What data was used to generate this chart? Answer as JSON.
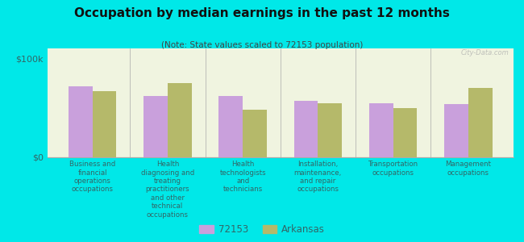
{
  "title": "Occupation by median earnings in the past 12 months",
  "subtitle": "(Note: State values scaled to 72153 population)",
  "background_color": "#00e8e8",
  "plot_bg_color": "#f0f4e0",
  "categories": [
    "Business and\nfinancial\noperations\noccupations",
    "Health\ndiagnosing and\ntreating\npractitioners\nand other\ntechnical\noccupations",
    "Health\ntechnologists\nand\ntechnicians",
    "Installation,\nmaintenance,\nand repair\noccupations",
    "Transportation\noccupations",
    "Management\noccupations"
  ],
  "values_72153": [
    72000,
    62000,
    62000,
    57000,
    55000,
    54000
  ],
  "values_arkansas": [
    67000,
    75000,
    48000,
    55000,
    50000,
    70000
  ],
  "color_72153": "#c9a0dc",
  "color_arkansas": "#b5b96a",
  "ylim": [
    0,
    110000
  ],
  "yticks": [
    0,
    100000
  ],
  "ytick_labels": [
    "$0",
    "$100k"
  ],
  "legend_label_72153": "72153",
  "legend_label_arkansas": "Arkansas",
  "watermark": "City-Data.com"
}
